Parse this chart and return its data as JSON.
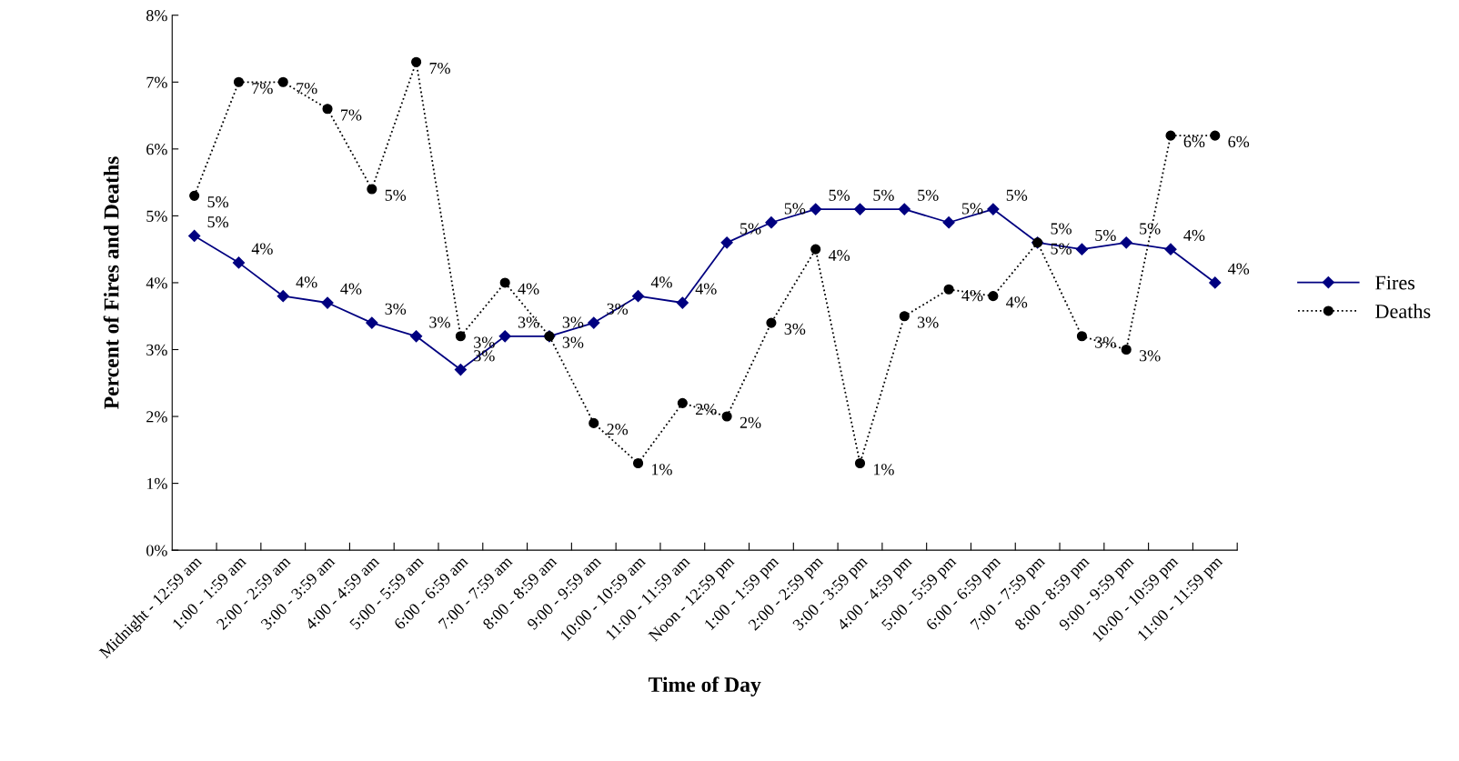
{
  "chart_data": {
    "type": "line",
    "xlabel": "Time of Day",
    "ylabel": "Percent of Fires and Deaths",
    "categories": [
      "Midnight - 12:59 am",
      "1:00 - 1:59 am",
      "2:00 - 2:59 am",
      "3:00 - 3:59 am",
      "4:00 - 4:59 am",
      "5:00 - 5:59 am",
      "6:00 - 6:59 am",
      "7:00 - 7:59 am",
      "8:00 - 8:59 am",
      "9:00 - 9:59 am",
      "10:00 - 10:59 am",
      "11:00 - 11:59 am",
      "Noon - 12:59 pm",
      "1:00 - 1:59 pm",
      "2:00 - 2:59 pm",
      "3:00 - 3:59 pm",
      "4:00 - 4:59 pm",
      "5:00 - 5:59 pm",
      "6:00 - 6:59 pm",
      "7:00 - 7:59 pm",
      "8:00 - 8:59 pm",
      "9:00 - 9:59 pm",
      "10:00 - 10:59 pm",
      "11:00 - 11:59 pm"
    ],
    "series": [
      {
        "name": "Fires",
        "color": "#000080",
        "marker": "diamond",
        "line_style": "solid",
        "values": [
          4.7,
          4.3,
          3.8,
          3.7,
          3.4,
          3.2,
          2.7,
          3.2,
          3.2,
          3.4,
          3.8,
          3.7,
          4.6,
          4.9,
          5.1,
          5.1,
          5.1,
          4.9,
          5.1,
          4.6,
          4.5,
          4.6,
          4.5,
          4.0
        ],
        "value_labels": [
          "5%",
          "4%",
          "4%",
          "4%",
          "3%",
          "3%",
          "3%",
          "3%",
          "3%",
          "3%",
          "4%",
          "4%",
          "5%",
          "5%",
          "5%",
          "5%",
          "5%",
          "5%",
          "5%",
          "5%",
          "5%",
          "5%",
          "4%",
          "4%"
        ]
      },
      {
        "name": "Deaths",
        "color": "#000000",
        "marker": "circle",
        "line_style": "dotted",
        "values": [
          5.3,
          7.0,
          7.0,
          6.6,
          5.4,
          7.3,
          3.2,
          4.0,
          3.2,
          1.9,
          1.3,
          2.2,
          2.0,
          3.4,
          4.5,
          1.3,
          3.5,
          3.9,
          3.8,
          4.6,
          3.2,
          3.0,
          6.2,
          6.2
        ],
        "value_labels": [
          "5%",
          "7%",
          "7%",
          "7%",
          "5%",
          "7%",
          "3%",
          "4%",
          "3%",
          "2%",
          "1%",
          "2%",
          "2%",
          "3%",
          "4%",
          "1%",
          "3%",
          "4%",
          "4%",
          "5%",
          "3%",
          "3%",
          "6%",
          "6%"
        ]
      }
    ],
    "ylim": [
      0,
      8
    ],
    "yticks": [
      {
        "value": 0,
        "label": "0%"
      },
      {
        "value": 1,
        "label": "1%"
      },
      {
        "value": 2,
        "label": "2%"
      },
      {
        "value": 3,
        "label": "3%"
      },
      {
        "value": 4,
        "label": "4%"
      },
      {
        "value": 5,
        "label": "5%"
      },
      {
        "value": 6,
        "label": "6%"
      },
      {
        "value": 7,
        "label": "7%"
      },
      {
        "value": 8,
        "label": "8%"
      }
    ],
    "grid": false,
    "legend": "right"
  }
}
